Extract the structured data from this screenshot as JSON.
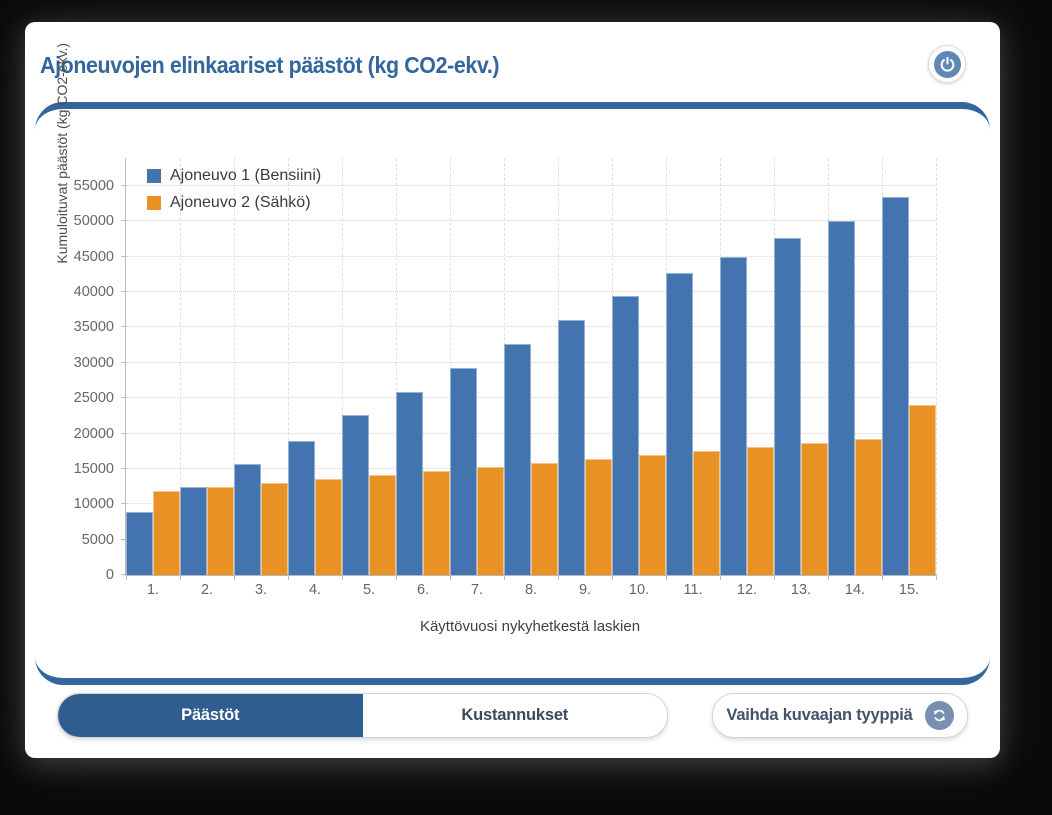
{
  "app": {
    "title": "Ajoneuvojen elinkaariset päästöt (kg CO2-ekv.)"
  },
  "chart_data": {
    "type": "bar",
    "title": "Ajoneuvojen elinkaariset päästöt (kg CO2-ekv.)",
    "xlabel": "Käyttövuosi nykyhetkestä laskien",
    "ylabel": "Kumuloituvat päästöt (kg CO2-ekv.)",
    "categories": [
      "1.",
      "2.",
      "3.",
      "4.",
      "5.",
      "6.",
      "7.",
      "8.",
      "9.",
      "10.",
      "11.",
      "12.",
      "13.",
      "14.",
      "15."
    ],
    "yticks": [
      0,
      5000,
      10000,
      15000,
      20000,
      25000,
      30000,
      35000,
      40000,
      45000,
      50000,
      55000
    ],
    "ylim": [
      0,
      55000
    ],
    "grid": true,
    "legend_position": "top-left",
    "series": [
      {
        "name": "Ajoneuvo 1 (Bensiini)",
        "color": "#4474b0",
        "values": [
          8900,
          12400,
          15700,
          19000,
          22600,
          25900,
          29300,
          32600,
          36000,
          39400,
          42700,
          45000,
          47700,
          50100,
          53500
        ]
      },
      {
        "name": "Ajoneuvo 2 (Sähkö)",
        "color": "#e89125",
        "values": [
          11900,
          12500,
          13000,
          13600,
          14100,
          14700,
          15300,
          15800,
          16400,
          17000,
          17500,
          18100,
          18600,
          19200,
          24000
        ]
      }
    ]
  },
  "footer": {
    "tabs": [
      {
        "label": "Päästöt",
        "active": true
      },
      {
        "label": "Kustannukset",
        "active": false
      }
    ],
    "change_type_label": "Vaihda kuvaajan tyyppiä"
  },
  "icons": {
    "power": "power-icon",
    "sync": "change-chart-type-icon"
  },
  "colors": {
    "title_blue": "#33669c",
    "arc_blue": "#35659b",
    "active_tab": "#2f5d8f",
    "series1": "#4474b0",
    "series2": "#e89125",
    "power_disc": "#5f88b5",
    "sync_disc": "#7790b0"
  }
}
